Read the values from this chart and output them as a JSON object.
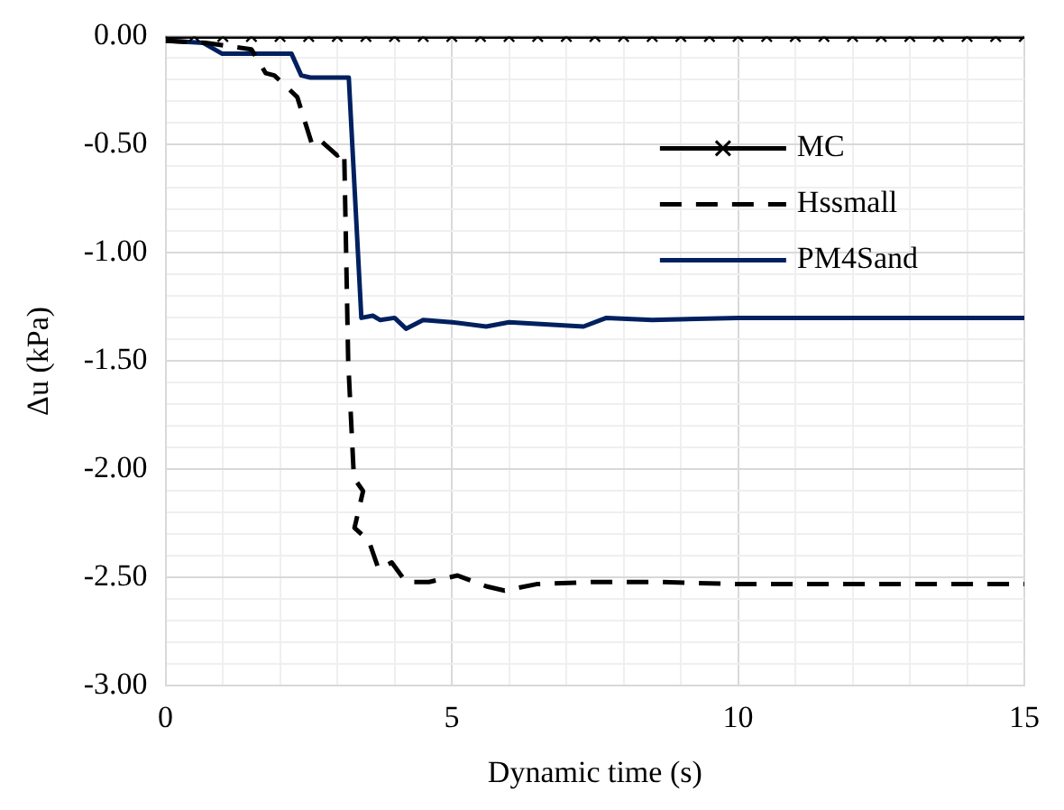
{
  "chart_data": {
    "type": "line",
    "xlabel": "Dynamic time (s)",
    "ylabel": "Δu (kPa)",
    "xlim": [
      0,
      15
    ],
    "ylim": [
      -3,
      0
    ],
    "xticks": [
      0,
      {
        "value": 1,
        "label": null
      },
      {
        "value": 2,
        "label": null
      },
      {
        "value": 3,
        "label": null
      },
      {
        "value": 4,
        "label": null
      },
      5,
      {
        "value": 6,
        "label": null
      },
      {
        "value": 7,
        "label": null
      },
      {
        "value": 8,
        "label": null
      },
      {
        "value": 9,
        "label": null
      },
      10,
      {
        "value": 11,
        "label": null
      },
      {
        "value": 12,
        "label": null
      },
      {
        "value": 13,
        "label": null
      },
      {
        "value": 14,
        "label": null
      },
      15
    ],
    "yticks": [
      {
        "value": 0,
        "label": "0.00"
      },
      {
        "value": -0.1,
        "label": null
      },
      {
        "value": -0.2,
        "label": null
      },
      {
        "value": -0.3,
        "label": null
      },
      {
        "value": -0.4,
        "label": null
      },
      {
        "value": -0.5,
        "label": "-0.50"
      },
      {
        "value": -0.6,
        "label": null
      },
      {
        "value": -0.7,
        "label": null
      },
      {
        "value": -0.8,
        "label": null
      },
      {
        "value": -0.9,
        "label": null
      },
      {
        "value": -1,
        "label": "-1.00"
      },
      {
        "value": -1.1,
        "label": null
      },
      {
        "value": -1.2,
        "label": null
      },
      {
        "value": -1.3,
        "label": null
      },
      {
        "value": -1.4,
        "label": null
      },
      {
        "value": -1.5,
        "label": "-1.50"
      },
      {
        "value": -1.6,
        "label": null
      },
      {
        "value": -1.7,
        "label": null
      },
      {
        "value": -1.8,
        "label": null
      },
      {
        "value": -1.9,
        "label": null
      },
      {
        "value": -2,
        "label": "-2.00"
      },
      {
        "value": -2.1,
        "label": null
      },
      {
        "value": -2.2,
        "label": null
      },
      {
        "value": -2.3,
        "label": null
      },
      {
        "value": -2.4,
        "label": null
      },
      {
        "value": -2.5,
        "label": "-2.50"
      },
      {
        "value": -2.6,
        "label": null
      },
      {
        "value": -2.7,
        "label": null
      },
      {
        "value": -2.8,
        "label": null
      },
      {
        "value": -2.9,
        "label": null
      },
      {
        "value": -3,
        "label": "-3.00"
      }
    ],
    "grid": true,
    "legend": "top right",
    "series": [
      {
        "name": "MC",
        "color": "#000000",
        "marker": "cross",
        "line_style": "solid",
        "x": [
          0,
          0.5,
          1,
          1.5,
          2,
          2.5,
          3,
          3.5,
          4,
          4.5,
          5,
          5.5,
          6,
          6.5,
          7,
          7.5,
          8,
          8.5,
          9,
          9.5,
          10,
          10.5,
          11,
          11.5,
          12,
          12.5,
          13,
          13.5,
          14,
          14.5,
          15
        ],
        "values": [
          0,
          0,
          0,
          0,
          0,
          0,
          0,
          0,
          0,
          0,
          0,
          0,
          0,
          0,
          0,
          0,
          0,
          0,
          0,
          0,
          0,
          0,
          0,
          0,
          0,
          0,
          0,
          0,
          0,
          0,
          0
        ]
      },
      {
        "name": "Hssmall",
        "color": "#000000",
        "marker": "none",
        "line_style": "dashed",
        "x": [
          0,
          0.7,
          1.5,
          1.75,
          1.9,
          2.3,
          2.56,
          2.7,
          3.0,
          3.12,
          3.19,
          3.29,
          3.45,
          3.3,
          3.55,
          3.72,
          3.95,
          4.2,
          4.6,
          5.1,
          5.6,
          5.92,
          6.48,
          7.47,
          8.65,
          10,
          12,
          15
        ],
        "values": [
          -0.02,
          -0.03,
          -0.06,
          -0.17,
          -0.18,
          -0.28,
          -0.5,
          -0.48,
          -0.55,
          -0.53,
          -1.5,
          -2.04,
          -2.1,
          -2.27,
          -2.33,
          -2.46,
          -2.43,
          -2.52,
          -2.52,
          -2.49,
          -2.54,
          -2.56,
          -2.53,
          -2.52,
          -2.52,
          -2.53,
          -2.53,
          -2.53
        ]
      },
      {
        "name": "PM4Sand",
        "color": "#002060",
        "marker": "none",
        "line_style": "solid",
        "x": [
          0,
          0.07,
          0.66,
          0.99,
          2.04,
          2.2,
          2.37,
          2.53,
          2.7,
          3.2,
          3.42,
          3.62,
          3.75,
          4.0,
          4.2,
          4.5,
          5.0,
          5.6,
          6.0,
          7.3,
          7.7,
          8.5,
          10,
          12,
          15
        ],
        "values": [
          -0.02,
          -0.02,
          -0.03,
          -0.08,
          -0.08,
          -0.08,
          -0.18,
          -0.19,
          -0.19,
          -0.19,
          -1.3,
          -1.29,
          -1.31,
          -1.3,
          -1.35,
          -1.31,
          -1.32,
          -1.34,
          -1.32,
          -1.34,
          -1.3,
          -1.31,
          -1.3,
          -1.3,
          -1.3
        ]
      }
    ]
  }
}
